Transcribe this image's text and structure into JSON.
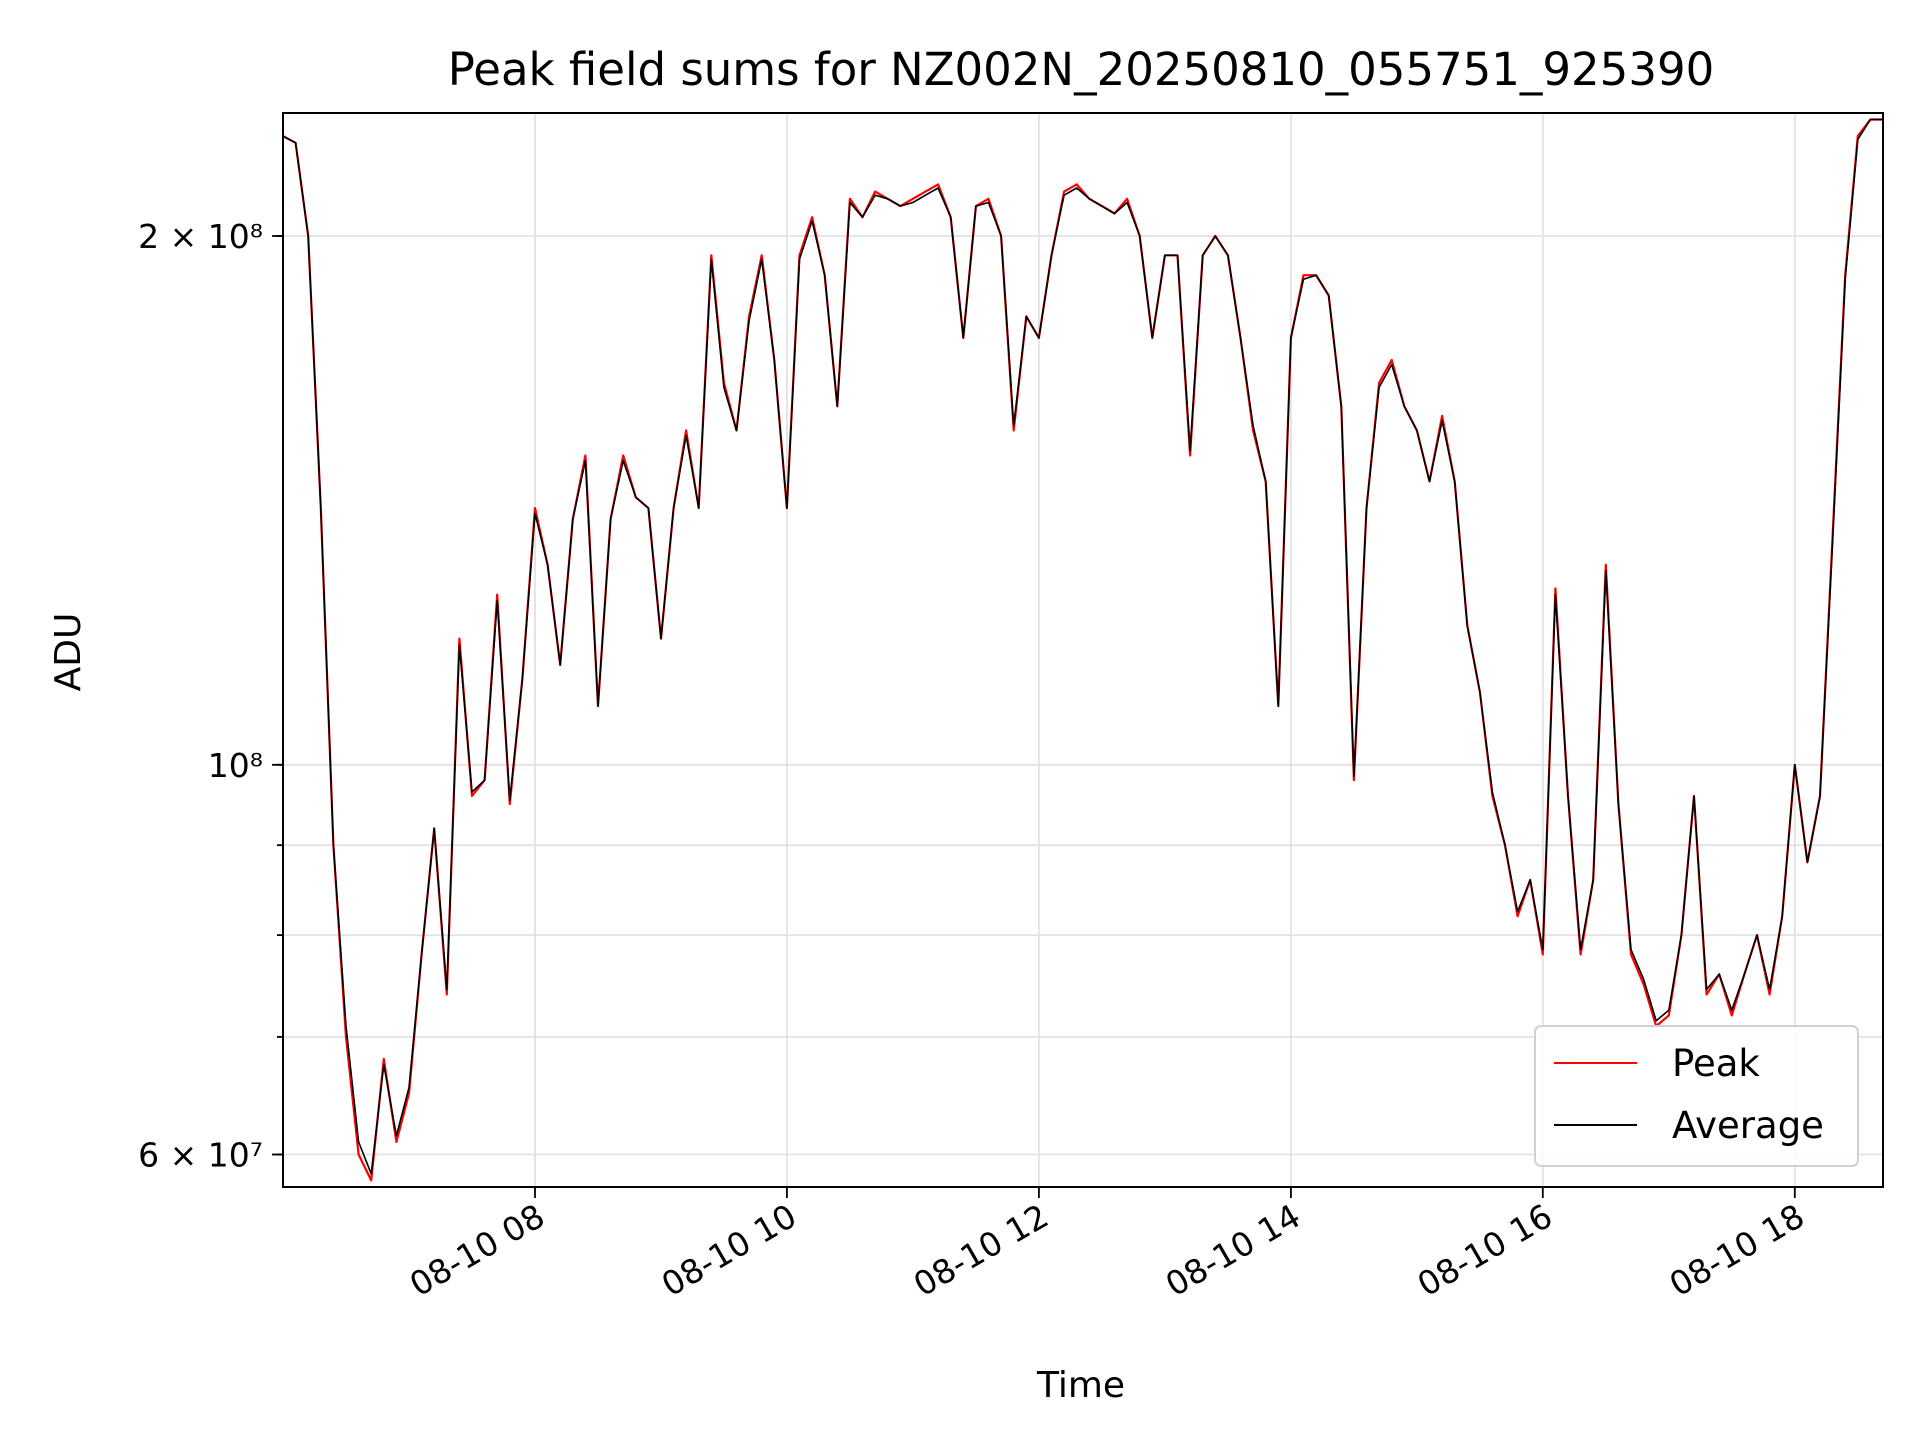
{
  "chart_data": {
    "type": "line",
    "title": "Peak field sums for NZ002N_20250810_055751_925390",
    "xlabel": "Time",
    "ylabel": "ADU",
    "x_tick_labels": [
      "08-10 08",
      "08-10 10",
      "08-10 12",
      "08-10 14",
      "08-10 16",
      "08-10 18"
    ],
    "x_tick_hours": [
      8,
      10,
      12,
      14,
      16,
      18
    ],
    "y_scale": "log",
    "y_tick_labels": [
      "6 × 10⁷",
      "10⁸",
      "2 × 10⁸"
    ],
    "y_tick_values": [
      60000000,
      100000000,
      200000000
    ],
    "ylim": [
      57500000,
      235000000
    ],
    "xlim_hours": [
      6.0,
      18.7
    ],
    "grid": true,
    "legend_position": "lower-right",
    "colors": {
      "peak": "#ff0000",
      "average": "#000000"
    },
    "series_names": [
      "Peak",
      "Average"
    ],
    "x_hours": [
      6.0,
      6.1,
      6.2,
      6.3,
      6.4,
      6.5,
      6.6,
      6.7,
      6.8,
      6.9,
      7.0,
      7.1,
      7.2,
      7.3,
      7.4,
      7.5,
      7.6,
      7.7,
      7.8,
      7.9,
      8.0,
      8.1,
      8.2,
      8.3,
      8.4,
      8.5,
      8.6,
      8.7,
      8.8,
      8.9,
      9.0,
      9.1,
      9.2,
      9.3,
      9.4,
      9.5,
      9.6,
      9.7,
      9.8,
      9.9,
      10.0,
      10.1,
      10.2,
      10.3,
      10.4,
      10.5,
      10.6,
      10.7,
      10.8,
      10.9,
      11.0,
      11.1,
      11.2,
      11.3,
      11.4,
      11.5,
      11.6,
      11.7,
      11.8,
      11.9,
      12.0,
      12.1,
      12.2,
      12.3,
      12.4,
      12.5,
      12.6,
      12.7,
      12.8,
      12.9,
      13.0,
      13.1,
      13.2,
      13.3,
      13.4,
      13.5,
      13.6,
      13.7,
      13.8,
      13.9,
      14.0,
      14.1,
      14.2,
      14.3,
      14.4,
      14.5,
      14.6,
      14.7,
      14.8,
      14.9,
      15.0,
      15.1,
      15.2,
      15.3,
      15.4,
      15.5,
      15.6,
      15.7,
      15.8,
      15.9,
      16.0,
      16.1,
      16.2,
      16.3,
      16.4,
      16.5,
      16.6,
      16.7,
      16.8,
      16.9,
      17.0,
      17.1,
      17.2,
      17.3,
      17.4,
      17.5,
      17.6,
      17.7,
      17.8,
      17.9,
      18.0,
      18.1,
      18.2,
      18.3,
      18.4,
      18.5,
      18.6,
      18.7
    ],
    "series": [
      {
        "name": "Peak",
        "values": [
          228000000,
          226000000,
          200000000,
          140000000,
          90000000,
          70000000,
          60000000,
          58000000,
          68000000,
          61000000,
          65000000,
          78000000,
          92000000,
          74000000,
          118000000,
          96000000,
          98000000,
          125000000,
          95000000,
          112000000,
          140000000,
          130000000,
          114000000,
          138000000,
          150000000,
          108000000,
          138000000,
          150000000,
          142000000,
          140000000,
          118000000,
          140000000,
          155000000,
          140000000,
          195000000,
          165000000,
          155000000,
          180000000,
          195000000,
          170000000,
          140000000,
          195000000,
          205000000,
          190000000,
          160000000,
          210000000,
          205000000,
          212000000,
          210000000,
          208000000,
          210000000,
          212000000,
          214000000,
          205000000,
          175000000,
          208000000,
          210000000,
          200000000,
          155000000,
          180000000,
          175000000,
          195000000,
          212000000,
          214000000,
          210000000,
          208000000,
          206000000,
          210000000,
          200000000,
          175000000,
          195000000,
          195000000,
          150000000,
          195000000,
          200000000,
          195000000,
          175000000,
          155000000,
          145000000,
          108000000,
          175000000,
          190000000,
          190000000,
          185000000,
          160000000,
          98000000,
          140000000,
          165000000,
          170000000,
          160000000,
          155000000,
          145000000,
          158000000,
          145000000,
          120000000,
          110000000,
          96000000,
          90000000,
          82000000,
          86000000,
          78000000,
          126000000,
          96000000,
          78000000,
          86000000,
          130000000,
          95000000,
          78000000,
          75000000,
          71000000,
          72000000,
          80000000,
          96000000,
          74000000,
          76000000,
          72000000,
          76000000,
          80000000,
          74000000,
          82000000,
          100000000,
          88000000,
          96000000,
          135000000,
          190000000,
          228000000,
          233000000,
          233000000
        ]
      },
      {
        "name": "Average",
        "values": [
          228000000,
          226000000,
          200000000,
          140000000,
          90000000,
          71000000,
          61000000,
          58500000,
          67500000,
          61500000,
          65500000,
          78000000,
          92000000,
          74500000,
          117000000,
          96500000,
          98000000,
          124000000,
          95500000,
          112000000,
          139000000,
          130000000,
          114000000,
          138000000,
          149000000,
          108000000,
          138000000,
          149000000,
          142000000,
          140000000,
          118000000,
          140000000,
          154000000,
          140000000,
          194000000,
          164000000,
          155000000,
          179000000,
          194000000,
          170000000,
          140000000,
          194000000,
          204000000,
          190000000,
          160000000,
          209000000,
          205000000,
          211000000,
          210000000,
          208000000,
          209000000,
          211000000,
          213000000,
          205000000,
          175000000,
          208000000,
          209000000,
          200000000,
          156000000,
          180000000,
          175000000,
          195000000,
          211000000,
          213000000,
          210000000,
          208000000,
          206000000,
          209000000,
          200000000,
          175000000,
          195000000,
          195000000,
          151000000,
          195000000,
          200000000,
          195000000,
          175000000,
          156000000,
          145000000,
          108000000,
          175000000,
          189000000,
          190000000,
          185000000,
          160000000,
          98500000,
          140000000,
          164000000,
          169000000,
          160000000,
          155000000,
          145000000,
          157000000,
          145000000,
          120000000,
          110000000,
          96500000,
          90000000,
          82500000,
          86000000,
          78500000,
          125000000,
          96000000,
          78500000,
          86000000,
          129000000,
          95000000,
          78500000,
          75500000,
          71500000,
          72500000,
          80000000,
          96000000,
          74500000,
          76000000,
          72500000,
          76000000,
          80000000,
          74500000,
          82000000,
          100000000,
          88000000,
          96000000,
          134000000,
          189000000,
          227000000,
          233000000,
          233000000
        ]
      }
    ]
  }
}
